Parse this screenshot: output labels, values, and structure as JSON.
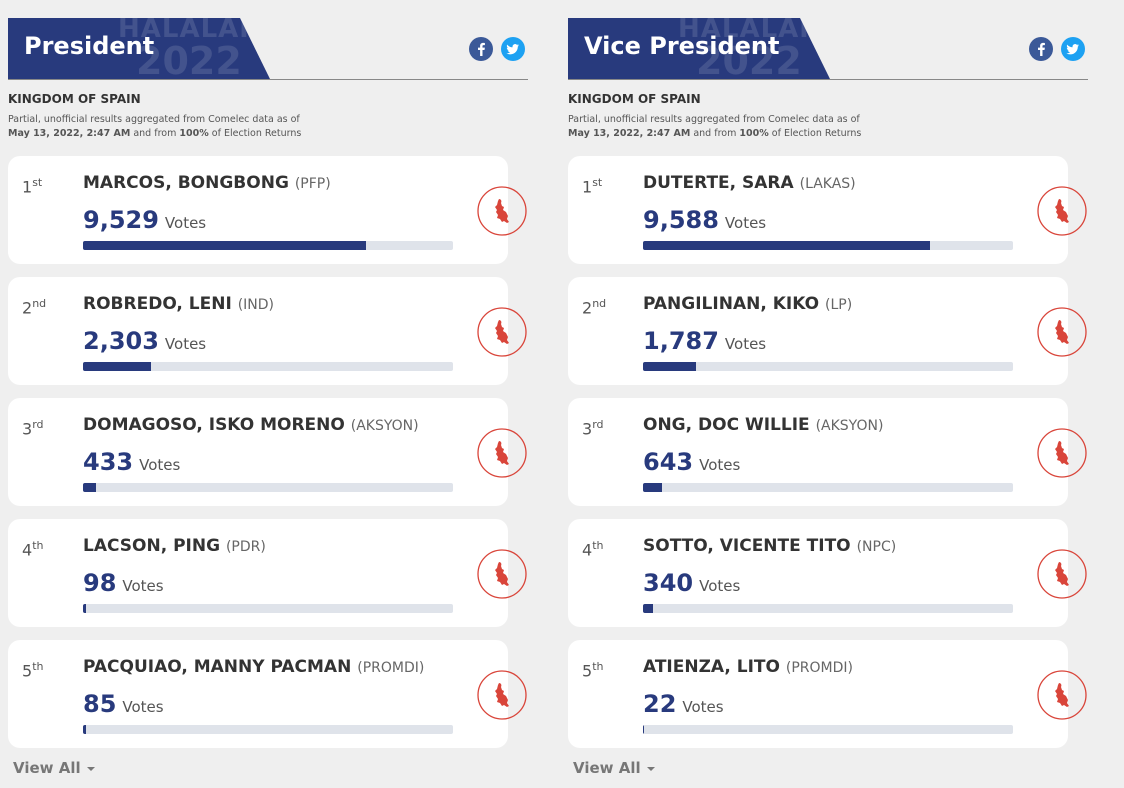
{
  "panels": [
    {
      "title": "President",
      "logo": {
        "word": "HALALAN",
        "year": "2022"
      },
      "region": "KINGDOM OF SPAIN",
      "note": {
        "line1": "Partial, unofficial results aggregated from Comelec data as of",
        "date": "May 13, 2022, 2:47 AM",
        "mid": "and from",
        "percent": "100%",
        "end": "of Election Returns"
      },
      "votes_word": "Votes",
      "view_all": "View All",
      "candidates": [
        {
          "rank": "1",
          "suffix": "st",
          "name": "MARCOS, BONGBONG",
          "party": "(PFP)",
          "votes": {
            "value": 9529,
            "label": "9,529"
          }
        },
        {
          "rank": "2",
          "suffix": "nd",
          "name": "ROBREDO, LENI",
          "party": "(IND)",
          "votes": {
            "value": 2303,
            "label": "2,303"
          }
        },
        {
          "rank": "3",
          "suffix": "rd",
          "name": "DOMAGOSO, ISKO MORENO",
          "party": "(AKSYON)",
          "votes": {
            "value": 433,
            "label": "433"
          }
        },
        {
          "rank": "4",
          "suffix": "th",
          "name": "LACSON, PING",
          "party": "(PDR)",
          "votes": {
            "value": 98,
            "label": "98"
          }
        },
        {
          "rank": "5",
          "suffix": "th",
          "name": "PACQUIAO, MANNY PACMAN",
          "party": "(PROMDI)",
          "votes": {
            "value": 85,
            "label": "85"
          }
        }
      ]
    },
    {
      "title": "Vice President",
      "logo": {
        "word": "HALALAN",
        "year": "2022"
      },
      "region": "KINGDOM OF SPAIN",
      "note": {
        "line1": "Partial, unofficial results aggregated from Comelec data as of",
        "date": "May 13, 2022, 2:47 AM",
        "mid": "and from",
        "percent": "100%",
        "end": "of Election Returns"
      },
      "votes_word": "Votes",
      "view_all": "View All",
      "candidates": [
        {
          "rank": "1",
          "suffix": "st",
          "name": "DUTERTE, SARA",
          "party": "(LAKAS)",
          "votes": {
            "value": 9588,
            "label": "9,588"
          }
        },
        {
          "rank": "2",
          "suffix": "nd",
          "name": "PANGILINAN, KIKO",
          "party": "(LP)",
          "votes": {
            "value": 1787,
            "label": "1,787"
          }
        },
        {
          "rank": "3",
          "suffix": "rd",
          "name": "ONG, DOC WILLIE",
          "party": "(AKSYON)",
          "votes": {
            "value": 643,
            "label": "643"
          }
        },
        {
          "rank": "4",
          "suffix": "th",
          "name": "SOTTO, VICENTE TITO",
          "party": "(NPC)",
          "votes": {
            "value": 340,
            "label": "340"
          }
        },
        {
          "rank": "5",
          "suffix": "th",
          "name": "ATIENZA, LITO",
          "party": "(PROMDI)",
          "votes": {
            "value": 22,
            "label": "22"
          }
        }
      ]
    }
  ]
}
